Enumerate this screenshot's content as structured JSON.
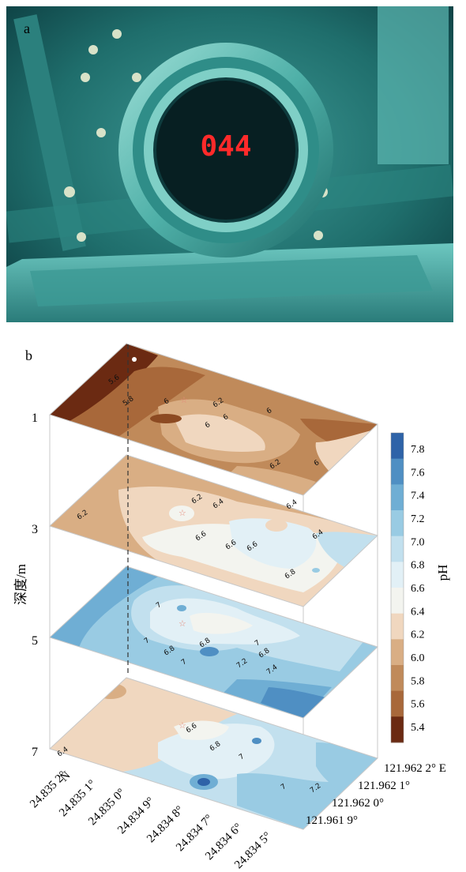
{
  "panel_a": {
    "label": "a",
    "display_reading": "044"
  },
  "panel_b": {
    "label": "b"
  },
  "chart_data": {
    "type": "heatmap",
    "title": "",
    "depth_axis": {
      "label": "深度/m",
      "layers": [
        "1",
        "3",
        "5",
        "7"
      ]
    },
    "latitude_axis": {
      "unit_label": "N",
      "ticks": [
        "24.835 2°",
        "24.835 1°",
        "24.835 0°",
        "24.834 9°",
        "24.834 8°",
        "24.834 7°",
        "24.834 6°",
        "24.834 5°"
      ]
    },
    "longitude_axis": {
      "ticks": [
        "121.962 2° E",
        "121.962 1°",
        "121.962 0°",
        "121.961 9°"
      ]
    },
    "colorbar": {
      "label": "pH",
      "ticks": [
        "7.8",
        "7.6",
        "7.4",
        "7.2",
        "7.0",
        "6.8",
        "6.6",
        "6.4",
        "6.2",
        "6.0",
        "5.8",
        "5.6",
        "5.4"
      ],
      "levels": [
        5.4,
        5.6,
        5.8,
        6.0,
        6.2,
        6.4,
        6.6,
        6.8,
        7.0,
        7.2,
        7.4,
        7.6,
        7.8
      ],
      "colors": [
        "#6b2a12",
        "#8c4a22",
        "#a8683a",
        "#c08a5a",
        "#d9ae84",
        "#f0d7bf",
        "#f3f4ef",
        "#e2f0f6",
        "#c2e0ee",
        "#99cbe3",
        "#6faed4",
        "#4f8fc3",
        "#2e63a8"
      ]
    },
    "layers": [
      {
        "depth": "1",
        "contour_labels": [
          "5.6",
          "5.8",
          "6",
          "6.2",
          "6",
          "6",
          "6",
          "6.2",
          "6"
        ],
        "range": [
          5.4,
          6.4
        ]
      },
      {
        "depth": "3",
        "contour_labels": [
          "6.2",
          "6.2",
          "6.4",
          "6.4",
          "6.6",
          "6.6",
          "6.6",
          "6.8",
          "6.4"
        ],
        "range": [
          6.0,
          6.8
        ]
      },
      {
        "depth": "5",
        "contour_labels": [
          "7",
          "7",
          "7",
          "6.8",
          "6.8",
          "7",
          "6.8",
          "7.2",
          "7.4"
        ],
        "range": [
          6.4,
          7.8
        ]
      },
      {
        "depth": "7",
        "contour_labels": [
          "6.4",
          "6.6",
          "6.8",
          "7",
          "7",
          "7.2"
        ],
        "range": [
          5.8,
          7.6
        ]
      }
    ]
  }
}
